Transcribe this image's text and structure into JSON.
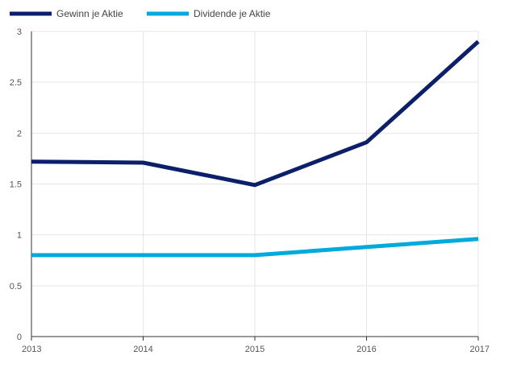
{
  "chart_data": {
    "type": "line",
    "title": "",
    "xlabel": "",
    "ylabel": "",
    "x": [
      "2013",
      "2014",
      "2015",
      "2016",
      "2017"
    ],
    "ylim": [
      0,
      3
    ],
    "yticks": [
      "0",
      "0.5",
      "1",
      "1.5",
      "2",
      "2.5",
      "3"
    ],
    "grid": true,
    "legend_position": "top-left",
    "series": [
      {
        "name": "Gewinn je Aktie",
        "color": "#0b1f6b",
        "values": [
          1.72,
          1.71,
          1.49,
          1.91,
          2.9
        ]
      },
      {
        "name": "Dividende je Aktie",
        "color": "#00aadc",
        "values": [
          0.8,
          0.8,
          0.8,
          0.88,
          0.96
        ]
      }
    ]
  }
}
